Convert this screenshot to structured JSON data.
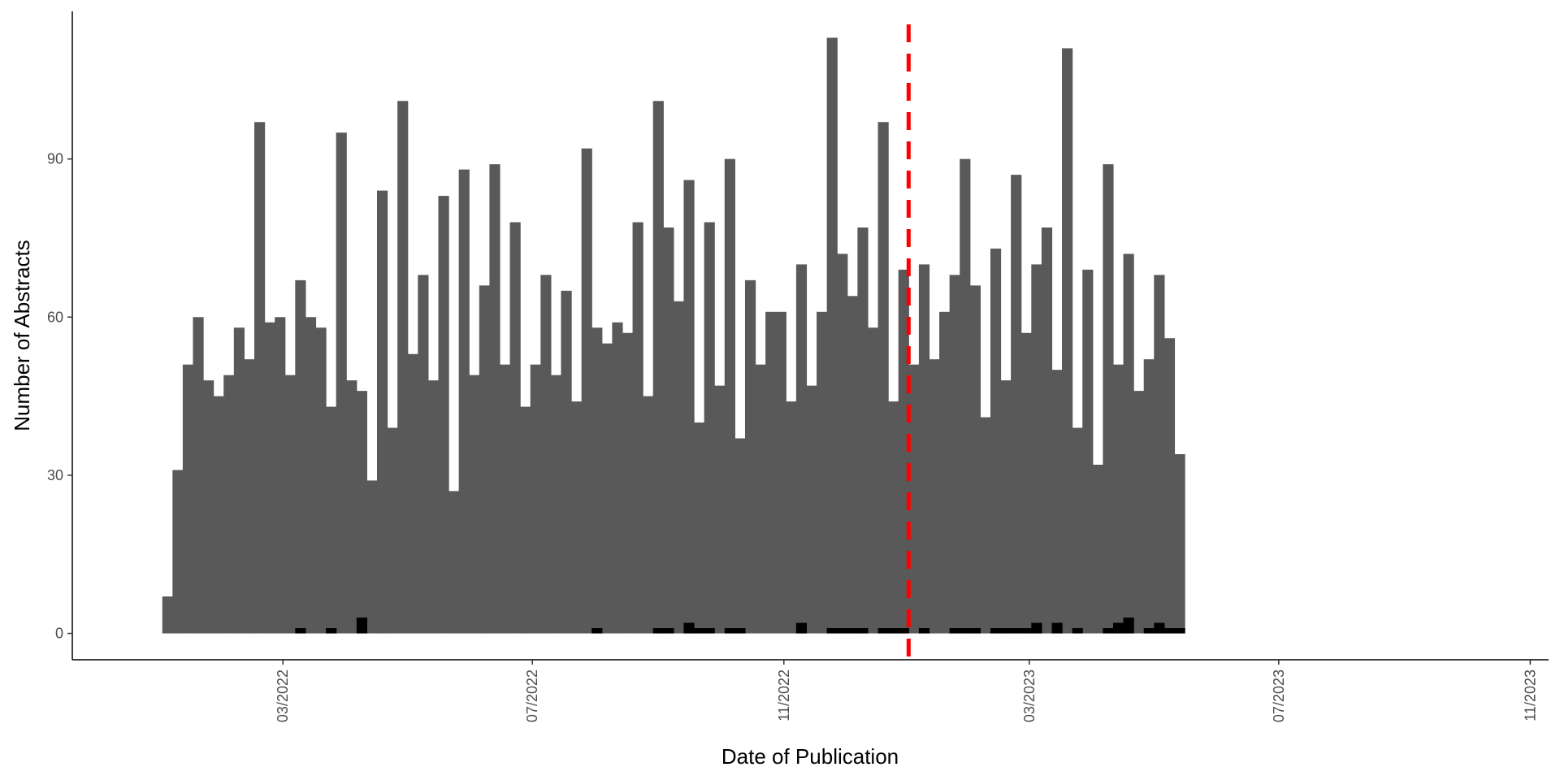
{
  "chart_data": {
    "type": "bar",
    "title": "",
    "xlabel": "Date of Publication",
    "ylabel": "Number of Abstracts",
    "x_axis": {
      "type": "date",
      "lim": [
        "2021-11-18",
        "2023-11-10"
      ],
      "ticks": [
        "2022-03-01",
        "2022-07-01",
        "2022-11-01",
        "2023-03-01",
        "2023-07-01",
        "2023-11-01"
      ],
      "tick_labels": [
        "03/2022",
        "07/2022",
        "11/2022",
        "03/2023",
        "07/2023",
        "11/2023"
      ]
    },
    "y_axis": {
      "lim": [
        -5,
        118
      ],
      "ticks": [
        0,
        30,
        60,
        90
      ],
      "tick_labels": [
        "0",
        "30",
        "60",
        "90"
      ]
    },
    "grid": false,
    "legend": "none",
    "bin_start": "2022-01-01",
    "bin_width_days": 5,
    "series": [
      {
        "color": "#595959",
        "values": [
          7,
          31,
          51,
          60,
          48,
          45,
          49,
          58,
          52,
          97,
          59,
          60,
          49,
          67,
          60,
          58,
          43,
          95,
          48,
          46,
          29,
          84,
          39,
          101,
          53,
          68,
          48,
          83,
          27,
          88,
          49,
          66,
          89,
          51,
          78,
          43,
          51,
          68,
          49,
          65,
          44,
          92,
          58,
          55,
          59,
          57,
          78,
          45,
          101,
          77,
          63,
          86,
          40,
          78,
          47,
          90,
          37,
          67,
          51,
          61,
          61,
          44,
          70,
          47,
          61,
          113,
          72,
          64,
          77,
          58,
          97,
          44,
          69,
          51,
          70,
          52,
          61,
          68,
          90,
          66,
          41,
          73,
          48,
          87,
          57,
          70,
          77,
          50,
          111,
          39,
          69,
          32,
          89,
          51,
          72,
          46,
          52,
          68,
          56,
          34
        ]
      },
      {
        "color": "#000000",
        "values": [
          0,
          0,
          0,
          0,
          0,
          0,
          0,
          0,
          0,
          0,
          0,
          0,
          0,
          1,
          0,
          0,
          1,
          0,
          0,
          3,
          0,
          0,
          0,
          0,
          0,
          0,
          0,
          0,
          0,
          0,
          0,
          0,
          0,
          0,
          0,
          0,
          0,
          0,
          0,
          0,
          0,
          0,
          1,
          0,
          0,
          0,
          0,
          0,
          1,
          1,
          0,
          2,
          1,
          1,
          0,
          1,
          1,
          0,
          0,
          0,
          0,
          0,
          2,
          0,
          0,
          1,
          1,
          1,
          1,
          0,
          1,
          1,
          1,
          0,
          1,
          0,
          0,
          1,
          1,
          1,
          0,
          1,
          1,
          1,
          1,
          2,
          0,
          2,
          0,
          1,
          0,
          0,
          1,
          2,
          3,
          0,
          1,
          2,
          1,
          1
        ]
      }
    ],
    "annotations": [
      {
        "type": "vline",
        "x": "2023-01-01",
        "color": "#ff0000",
        "style": "dashed"
      }
    ]
  }
}
